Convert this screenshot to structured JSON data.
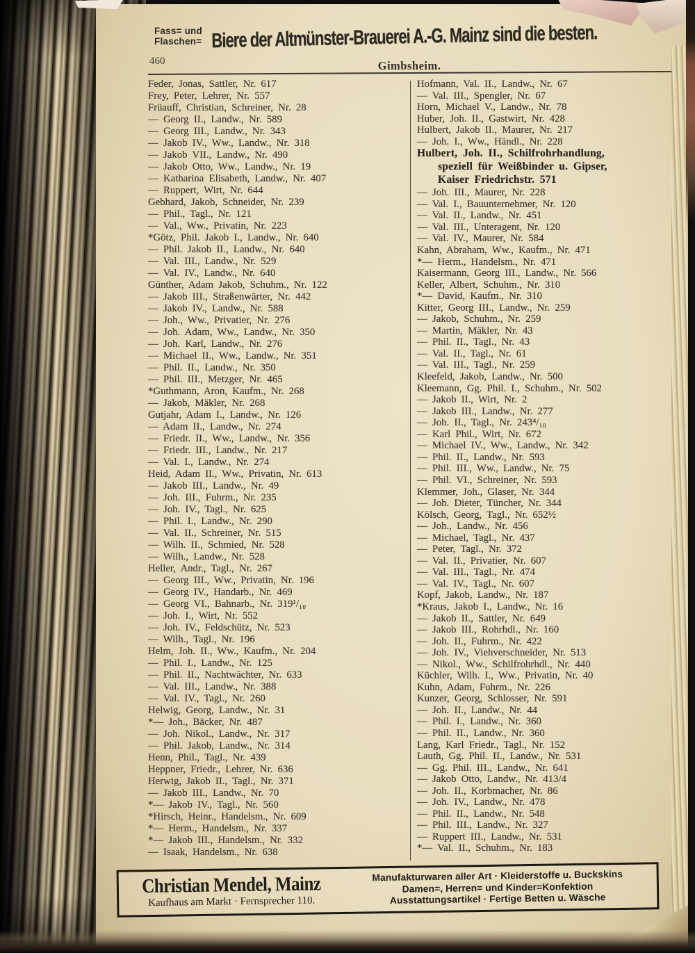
{
  "page_header": {
    "ad_prefix_line1": "Fass= und",
    "ad_prefix_line2": "Flaschen=",
    "ad_main": "Biere der Altmünster-Brauerei A.-G. Mainz sind die besten.",
    "page_number": "460",
    "place_name": "Gimbsheim."
  },
  "directory": {
    "left_column": [
      {
        "t": "Feder, Jonas, Sattler, Nr. 617"
      },
      {
        "t": "Frey, Peter, Lehrer, Nr. 557"
      },
      {
        "t": "Früauff, Christian, Schreiner, Nr. 28"
      },
      {
        "t": "— Georg II., Landw., Nr. 589"
      },
      {
        "t": "— Georg III., Landw., Nr. 343"
      },
      {
        "t": "— Jakob IV., Ww., Landw., Nr. 318"
      },
      {
        "t": "— Jakob VII., Landw., Nr. 490"
      },
      {
        "t": "— Jakob Otto, Ww., Landw., Nr. 19"
      },
      {
        "t": "— Katharina Elisabeth, Landw., Nr. 407"
      },
      {
        "t": "— Ruppert, Wirt, Nr. 644"
      },
      {
        "t": "Gebhard, Jakob, Schneider, Nr. 239"
      },
      {
        "t": "— Phil., Tagl., Nr. 121"
      },
      {
        "t": "— Val., Ww., Privatin, Nr. 223"
      },
      {
        "t": "*Götz, Phil. Jakob I., Landw., Nr. 640"
      },
      {
        "t": "— Phil. Jakob II., Landw., Nr. 640"
      },
      {
        "t": "— Val. III., Landw., Nr. 529"
      },
      {
        "t": "— Val. IV., Landw., Nr. 640"
      },
      {
        "t": "Günther, Adam Jakob, Schuhm., Nr. 122"
      },
      {
        "t": "— Jakob III., Straßenwärter, Nr. 442"
      },
      {
        "t": "— Jakob IV., Landw., Nr. 588"
      },
      {
        "t": "— Joh., Ww., Privatier, Nr. 276"
      },
      {
        "t": "— Joh. Adam, Ww., Landw., Nr. 350"
      },
      {
        "t": "— Joh. Karl, Landw., Nr. 276"
      },
      {
        "t": "— Michael II., Ww., Landw., Nr. 351"
      },
      {
        "t": "— Phil. II., Landw., Nr. 350"
      },
      {
        "t": "— Phil. III., Metzger, Nr. 465"
      },
      {
        "t": "*Guthmann, Aron, Kaufm., Nr. 268"
      },
      {
        "t": "— Jakob, Mäkler, Nr. 268"
      },
      {
        "t": "Gutjahr, Adam I., Landw., Nr. 126"
      },
      {
        "t": "— Adam II., Landw., Nr. 274"
      },
      {
        "t": "— Friedr. II., Ww., Landw., Nr. 356"
      },
      {
        "t": "— Friedr. III., Landw., Nr. 217"
      },
      {
        "t": "— Val. I., Landw., Nr. 274"
      },
      {
        "t": "Heid, Adam II., Ww., Privatin, Nr. 613"
      },
      {
        "t": "— Jakob III., Landw., Nr. 49"
      },
      {
        "t": "— Joh. III., Fuhrm., Nr. 235"
      },
      {
        "t": "— Joh. IV., Tagl., Nr. 625"
      },
      {
        "t": "— Phil. I., Landw., Nr. 290"
      },
      {
        "t": "— Val. II., Schreiner, Nr. 515"
      },
      {
        "t": "— Wilh. II., Schmied, Nr. 528"
      },
      {
        "t": "— Wilh., Landw., Nr. 528"
      },
      {
        "t": "Heller, Andr., Tagl., Nr. 267"
      },
      {
        "t": "— Georg III., Ww., Privatin, Nr. 196"
      },
      {
        "t": "— Georg IV., Handarb., Nr. 469"
      },
      {
        "t": "— Georg VI., Bahnarb., Nr. 319¹/₁₀"
      },
      {
        "t": "— Joh. I., Wirt, Nr. 552"
      },
      {
        "t": "— Joh. IV., Feldschütz, Nr. 523"
      },
      {
        "t": "— Wilh., Tagl., Nr. 196"
      },
      {
        "t": "Helm, Joh. II., Ww., Kaufm., Nr. 204"
      },
      {
        "t": "— Phil. I., Landw., Nr. 125"
      },
      {
        "t": "— Phil. II., Nachtwächter, Nr. 633"
      },
      {
        "t": "— Val. III., Landw., Nr. 388"
      },
      {
        "t": "— Val. IV., Tagl., Nr. 260"
      },
      {
        "t": "Helwig, Georg, Landw., Nr. 31"
      },
      {
        "t": "*— Joh., Bäcker, Nr. 487"
      },
      {
        "t": "— Joh. Nikol., Landw., Nr. 317"
      },
      {
        "t": "— Phil. Jakob, Landw., Nr. 314"
      },
      {
        "t": "Henn, Phil., Tagl., Nr. 439"
      },
      {
        "t": "Heppner, Friedr., Lehrer, Nr. 636"
      },
      {
        "t": "Herwig, Jakob II., Tagl., Nr. 371"
      },
      {
        "t": "— Jakob III., Landw., Nr. 70"
      },
      {
        "t": "*— Jakob IV., Tagl., Nr. 560"
      },
      {
        "t": "*Hirsch, Heinr., Handelsm., Nr. 609"
      },
      {
        "t": "*— Herm., Handelsm., Nr. 337"
      },
      {
        "t": "*— Jakob III., Handelsm., Nr. 332"
      },
      {
        "t": "— Isaak, Handelsm., Nr. 638"
      }
    ],
    "right_column": [
      {
        "t": "Hofmann, Val. II., Landw., Nr. 67"
      },
      {
        "t": "— Val. III., Spengler, Nr. 67"
      },
      {
        "t": "Horn, Michael V., Landw., Nr. 78"
      },
      {
        "t": "Huber, Joh. II., Gastwirt, Nr. 428"
      },
      {
        "t": "Hulbert, Jakob II., Maurer, Nr. 217"
      },
      {
        "t": "— Joh. I., Ww., Händl., Nr. 228"
      },
      {
        "t": "Hulbert, Joh. II., Schilfrohrhandlung,",
        "b": true
      },
      {
        "t": "speziell für Weißbinder u. Gipser,",
        "b": true,
        "ind": true
      },
      {
        "t": "Kaiser Friedrichstr. 571",
        "b": true,
        "ind": true
      },
      {
        "t": "— Joh. III., Maurer, Nr. 228"
      },
      {
        "t": "— Val. I., Bauunternehmer, Nr. 120"
      },
      {
        "t": "— Val. II., Landw., Nr. 451"
      },
      {
        "t": "— Val. III., Unteragent, Nr. 120"
      },
      {
        "t": "— Val. IV., Maurer, Nr. 584"
      },
      {
        "t": "Kahn, Abraham, Ww., Kaufm., Nr. 471"
      },
      {
        "t": "*— Herm., Handelsm., Nr. 471"
      },
      {
        "t": "Kaisermann, Georg III., Landw., Nr. 566"
      },
      {
        "t": "Keller, Albert, Schuhm., Nr. 310"
      },
      {
        "t": "*— David, Kaufm., Nr. 310"
      },
      {
        "t": "Kitter, Georg III., Landw., Nr. 259"
      },
      {
        "t": "— Jakob, Schuhm., Nr. 259"
      },
      {
        "t": "— Martin, Mäkler, Nr. 43"
      },
      {
        "t": "— Phil. II., Tagl., Nr. 43"
      },
      {
        "t": "— Val. II., Tagl., Nr. 61"
      },
      {
        "t": "— Val. III., Tagl., Nr. 259"
      },
      {
        "t": "Kleefeld, Jakob, Landw., Nr. 500"
      },
      {
        "t": "Kleemann, Gg. Phil. I., Schuhm., Nr. 502"
      },
      {
        "t": "— Jakob II., Wirt, Nr. 2"
      },
      {
        "t": "— Jakob III., Landw., Nr. 277"
      },
      {
        "t": "— Joh. II., Tagl., Nr. 243⁴/₁₀"
      },
      {
        "t": "— Karl Phil., Wirt, Nr. 672"
      },
      {
        "t": "— Michael IV., Ww., Landw., Nr. 342"
      },
      {
        "t": "— Phil. II., Landw., Nr. 593"
      },
      {
        "t": "— Phil. III., Ww., Landw., Nr. 75"
      },
      {
        "t": "— Phil. VI., Schreiner, Nr. 593"
      },
      {
        "t": "Klemmer, Joh., Glaser, Nr. 344"
      },
      {
        "t": "— Joh. Dieter, Tüncher, Nr. 344"
      },
      {
        "t": "Kölsch, Georg, Tagl., Nr. 652½"
      },
      {
        "t": "— Joh., Landw., Nr. 456"
      },
      {
        "t": "— Michael, Tagl., Nr. 437"
      },
      {
        "t": "— Peter, Tagl., Nr. 372"
      },
      {
        "t": "— Val. II., Privatier, Nr. 607"
      },
      {
        "t": "— Val. III., Tagl., Nr. 474"
      },
      {
        "t": "— Val. IV., Tagl., Nr. 607"
      },
      {
        "t": "Kopf, Jakob, Landw., Nr. 187"
      },
      {
        "t": "*Kraus, Jakob I., Landw., Nr. 16"
      },
      {
        "t": "— Jakob II., Sattler, Nr. 649"
      },
      {
        "t": "— Jakob III., Rohrhdl., Nr. 160"
      },
      {
        "t": "— Joh. II., Fuhrm., Nr. 422"
      },
      {
        "t": "— Joh. IV., Viehverschneider, Nr. 513"
      },
      {
        "t": "— Nikol., Ww., Schilfrohrhdl., Nr. 440"
      },
      {
        "t": "Küchler, Wilh. I., Ww., Privatin, Nr. 40"
      },
      {
        "t": "Kuhn, Adam, Fuhrm., Nr. 226"
      },
      {
        "t": "Kunzer, Georg, Schlosser, Nr. 591"
      },
      {
        "t": "— Joh. II., Landw., Nr. 44"
      },
      {
        "t": "— Phil. I., Landw., Nr. 360"
      },
      {
        "t": "— Phil. II., Landw., Nr. 360"
      },
      {
        "t": "Lang, Karl Friedr., Tagl., Nr. 152"
      },
      {
        "t": "Lauth, Gg. Phil. II., Landw., Nr. 531"
      },
      {
        "t": "— Gg. Phil. III., Landw., Nr. 641"
      },
      {
        "t": "— Jakob Otto, Landw., Nr. 413/4"
      },
      {
        "t": "— Joh. II., Korbmacher, Nr. 86"
      },
      {
        "t": "— Joh. IV., Landw., Nr. 478"
      },
      {
        "t": "— Phil. II., Landw., Nr. 548"
      },
      {
        "t": "— Phil. III., Landw., Nr. 327"
      },
      {
        "t": "— Ruppert III., Landw., Nr. 531"
      },
      {
        "t": "*— Val. II., Schuhm., Nr. 183"
      }
    ]
  },
  "footer_ad": {
    "company": "Christian Mendel, Mainz",
    "address_line": "Kaufhaus am Markt · Fernsprecher 110.",
    "lines": [
      "Manufakturwaren aller Art · Kleiderstoffe u. Buckskins",
      "Damen=, Herren= und Kinder=Konfektion",
      "Ausstattungsartikel · Fertige Betten u. Wäsche"
    ]
  },
  "colors": {
    "paper": "#e8ddbf",
    "ink": "#38342a",
    "backdrop": "#14110e",
    "debris_pink": "#e0bfb2"
  }
}
